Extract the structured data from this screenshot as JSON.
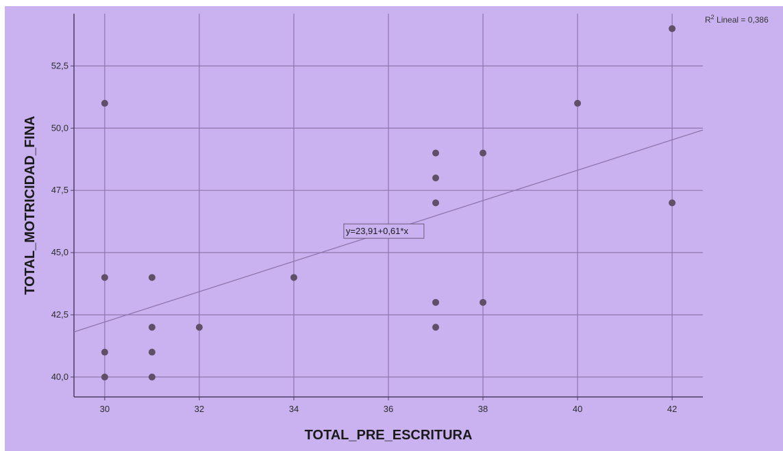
{
  "chart_data": {
    "type": "scatter",
    "xlabel": "TOTAL_PRE_ESCRITURA",
    "ylabel": "TOTAL_MOTRICIDAD_FINA",
    "xlim": [
      29.35,
      42.65
    ],
    "ylim": [
      39.2,
      54.6
    ],
    "xticks": [
      30,
      32,
      34,
      36,
      38,
      40,
      42
    ],
    "xtick_labels": [
      "30",
      "32",
      "34",
      "36",
      "38",
      "40",
      "42"
    ],
    "yticks": [
      40.0,
      42.5,
      45.0,
      47.5,
      50.0,
      52.5
    ],
    "ytick_labels": [
      "40,0",
      "42,5",
      "45,0",
      "47,5",
      "50,0",
      "52,5"
    ],
    "grid": true,
    "points": [
      {
        "x": 30,
        "y": 51
      },
      {
        "x": 30,
        "y": 44
      },
      {
        "x": 30,
        "y": 41
      },
      {
        "x": 30,
        "y": 40
      },
      {
        "x": 31,
        "y": 44
      },
      {
        "x": 31,
        "y": 42
      },
      {
        "x": 31,
        "y": 41
      },
      {
        "x": 31,
        "y": 40
      },
      {
        "x": 32,
        "y": 42
      },
      {
        "x": 34,
        "y": 44
      },
      {
        "x": 37,
        "y": 49
      },
      {
        "x": 37,
        "y": 48
      },
      {
        "x": 37,
        "y": 47
      },
      {
        "x": 37,
        "y": 43
      },
      {
        "x": 37,
        "y": 42
      },
      {
        "x": 38,
        "y": 49
      },
      {
        "x": 38,
        "y": 43
      },
      {
        "x": 40,
        "y": 51
      },
      {
        "x": 42,
        "y": 54
      },
      {
        "x": 42,
        "y": 47
      }
    ],
    "fit_line": {
      "intercept": 23.91,
      "slope": 0.61
    },
    "equation_label": "y=23,91+0,61*x",
    "r2_label": {
      "prefix": "R",
      "sup": "2",
      "text": " Lineal = 0,386"
    },
    "colors": {
      "background": "#cab2f0",
      "plot_line": "#8f75ad",
      "point": "#5f5068",
      "axis": "#4d3d63"
    }
  }
}
